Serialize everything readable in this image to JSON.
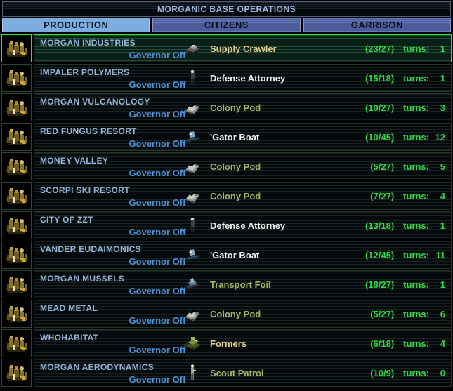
{
  "title": "MORGANIC BASE OPERATIONS",
  "tabs": [
    {
      "label": "PRODUCTION",
      "active": true
    },
    {
      "label": "CITIZENS",
      "active": false
    },
    {
      "label": "GARRISON",
      "active": false
    }
  ],
  "colors": {
    "selected_border": "#35e035",
    "progress_green": "#30d742",
    "base_name_blue": "#93b4d6",
    "governor_blue": "#4b8fd4",
    "active_tab": "#7dacdf",
    "inactive_tab": "#55639f",
    "item_tan": "#e6cd8f",
    "item_white": "#f0f0f0",
    "item_olive": "#a9b164"
  },
  "rows": [
    {
      "name": "MORGAN INDUSTRIES",
      "governor": "Governor Off",
      "item": "Supply Crawler",
      "icon": "supply-crawler",
      "color": "tan",
      "progress": "(23/27)",
      "turns_label": "turns:",
      "turns": "1",
      "selected": true
    },
    {
      "name": "IMPALER POLYMERS",
      "governor": "Governor Off",
      "item": "Defense Attorney",
      "icon": "defense-infantry",
      "color": "white",
      "progress": "(15/18)",
      "turns_label": "turns:",
      "turns": "1",
      "selected": false
    },
    {
      "name": "MORGAN VULCANOLOGY",
      "governor": "Governor Off",
      "item": "Colony Pod",
      "icon": "colony-pod",
      "color": "olive",
      "progress": "(10/27)",
      "turns_label": "turns:",
      "turns": "3",
      "selected": false
    },
    {
      "name": "RED FUNGUS RESORT",
      "governor": "Governor Off",
      "item": "'Gator Boat",
      "icon": "gator-boat",
      "color": "white",
      "progress": "(10/45)",
      "turns_label": "turns:",
      "turns": "12",
      "selected": false
    },
    {
      "name": "MONEY VALLEY",
      "governor": "Governor Off",
      "item": "Colony Pod",
      "icon": "colony-pod",
      "color": "olive",
      "progress": "(5/27)",
      "turns_label": "turns:",
      "turns": "5",
      "selected": false
    },
    {
      "name": "SCORPI SKI RESORT",
      "governor": "Governor Off",
      "item": "Colony Pod",
      "icon": "colony-pod",
      "color": "olive",
      "progress": "(7/27)",
      "turns_label": "turns:",
      "turns": "4",
      "selected": false
    },
    {
      "name": "CITY OF ZZT",
      "governor": "Governor Off",
      "item": "Defense Attorney",
      "icon": "defense-infantry",
      "color": "white",
      "progress": "(13/18)",
      "turns_label": "turns:",
      "turns": "1",
      "selected": false
    },
    {
      "name": "VANDER EUDAIMONICS",
      "governor": "Governor Off",
      "item": "'Gator Boat",
      "icon": "gator-boat",
      "color": "white",
      "progress": "(12/45)",
      "turns_label": "turns:",
      "turns": "11",
      "selected": false
    },
    {
      "name": "MORGAN MUSSELS",
      "governor": "Governor Off",
      "item": "Transport Foil",
      "icon": "transport-foil",
      "color": "olive",
      "progress": "(18/27)",
      "turns_label": "turns:",
      "turns": "1",
      "selected": false
    },
    {
      "name": "MEAD METAL",
      "governor": "Governor Off",
      "item": "Colony Pod",
      "icon": "colony-pod",
      "color": "olive",
      "progress": "(5/27)",
      "turns_label": "turns:",
      "turns": "6",
      "selected": false
    },
    {
      "name": "WHOHABITAT",
      "governor": "Governor Off",
      "item": "Formers",
      "icon": "formers",
      "color": "tan",
      "progress": "(6/18)",
      "turns_label": "turns:",
      "turns": "4",
      "selected": false
    },
    {
      "name": "MORGAN AERODYNAMICS",
      "governor": "Governor Off",
      "item": "Scout Patrol",
      "icon": "scout-patrol",
      "color": "olive",
      "progress": "(10/9)",
      "turns_label": "turns:",
      "turns": "0",
      "selected": false
    }
  ]
}
